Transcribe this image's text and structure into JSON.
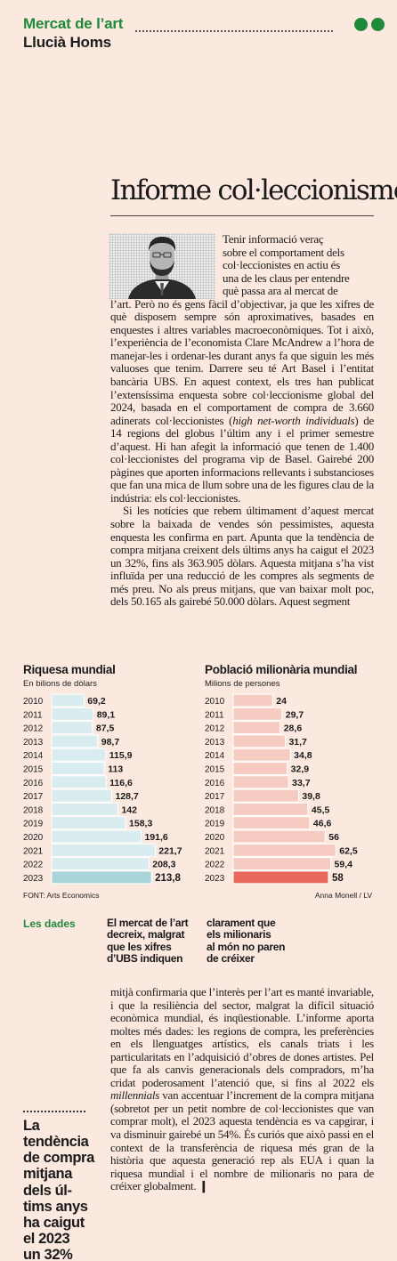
{
  "header": {
    "section": "Mercat de l’art",
    "author": "Llucià Homs"
  },
  "article": {
    "headline": "Informe col·leccionisme",
    "lead_lines": [
      "Tenir informació veraç",
      "sobre el comportament dels",
      "col·leccionistes en actiu és",
      "una de les claus per entendre",
      "què passa ara al mercat de"
    ],
    "p1_rest_a": "l’art. Però no és gens fàcil d’objectivar, ja que les xifres de què disposem sempre són aproximatives, basades en enquestes i altres variables macroeconòmiques. Tot i això, l’experiència de l’economista Clare McAndrew a l’hora de manejar-les i ordenar-les durant anys fa que siguin les més valuoses que tenim. Darrere seu té Art Basel i l’entitat bancària UBS. En aquest context, els tres han publicat l’extensíssima enquesta sobre col·leccionisme global del 2024, basada en el comportament de compra de 3.660 adinerats col·leccionistes (",
    "p1_italic": "high net-worth individuals",
    "p1_rest_b": ") de 14 regions del globus l’últim any i el primer semestre d’aquest. Hi han afegit la informació que tenen de 1.400 col·leccionistes del programa vip de Basel. Gairebé 200 pàgines que aporten informacions rellevants i substancioses que fan una mica de llum sobre una de les figures clau de la indústria: els col·leccionistes.",
    "p2": "Si les notícies que rebem últimament d’aquest mercat sobre la baixada de vendes són pessimistes, aquesta enquesta les confirma en part. Apunta que la tendència de compra mitjana creixent dels últims anys ha caigut el 2023 un 32%, fins als 363.905 dòlars. Aquesta mitjana s’ha vist influïda per una reducció de les compres als segments de més preu. No als preus mitjans, que van baixar molt poc, dels 50.165 als gairebé 50.000 dòlars. Aquest segment",
    "p3_a": "mitjà confirmaria que l’interès per l’art es manté invariable, i que la resiliència del sector, malgrat la difícil situació econòmica mundial, és inqüestionable. L’informe aporta moltes més dades: les regions de compra, les preferències en els llenguatges artístics, els canals triats i les particularitats en l’adquisició d’obres de dones artistes. Pel que fa als canvis generacionals dels compradors, m’ha cridat poderosament l’atenció que, si fins al 2022 els ",
    "p3_italic": "millennials",
    "p3_b": " van accentuar l’increment de la compra mitjana (sobretot per un petit nombre de col·leccionistes que van comprar molt), el 2023 aquesta tendència es va capgirar, i va disminuir gairebé un 54%. És curiós que això passi en el context de la transferència de riquesa més gran de la història que aquesta generació rep als EUA i quan la riquesa mundial i el nombre de milionaris no para de créixer globalment.",
    "end_mark": "❙"
  },
  "chart_data": [
    {
      "type": "bar",
      "orientation": "horizontal",
      "title": "Riquesa mundial",
      "subtitle": "En bilions de dòlars",
      "categories": [
        "2010",
        "2011",
        "2012",
        "2013",
        "2014",
        "2015",
        "2016",
        "2017",
        "2018",
        "2019",
        "2020",
        "2021",
        "2022",
        "2023"
      ],
      "values": [
        69.2,
        89.1,
        87.5,
        98.7,
        115.9,
        113,
        116.6,
        128.7,
        142,
        158.3,
        191.6,
        221.7,
        208.3,
        213.8
      ],
      "labels": [
        "69,2",
        "89,1",
        "87,5",
        "98,7",
        "115,9",
        "113",
        "116,6",
        "128,7",
        "142",
        "158,3",
        "191,6",
        "221,7",
        "208,3",
        "213,8"
      ],
      "xlim": [
        0,
        225
      ],
      "colors": {
        "bar": "#d9ecef",
        "highlight": "#a8d4da",
        "stroke": "#ffffff"
      },
      "highlight_index": 13,
      "source": "FONT: Arts Economics"
    },
    {
      "type": "bar",
      "orientation": "horizontal",
      "title": "Població milionària mundial",
      "subtitle": "Milions de persones",
      "categories": [
        "2010",
        "2011",
        "2012",
        "2013",
        "2014",
        "2015",
        "2016",
        "2017",
        "2018",
        "2019",
        "2020",
        "2021",
        "2022",
        "2023"
      ],
      "values": [
        24,
        29.7,
        28.6,
        31.7,
        34.8,
        32.9,
        33.7,
        39.8,
        45.5,
        46.6,
        56,
        62.5,
        59.4,
        58
      ],
      "labels": [
        "24",
        "29,7",
        "28,6",
        "31,7",
        "34,8",
        "32,9",
        "33,7",
        "39,8",
        "45,5",
        "46,6",
        "56",
        "62,5",
        "59,4",
        "58"
      ],
      "xlim": [
        0,
        64
      ],
      "colors": {
        "bar": "#f5cbc2",
        "highlight": "#e8695c",
        "stroke": "#ffffff"
      },
      "highlight_index": 13,
      "credit": "Anna Monell / LV"
    }
  ],
  "les_dades": {
    "label": "Les dades",
    "col1": [
      "El mercat de l’art",
      "decreix, malgrat",
      "que les xifres",
      "d’UBS indiquen"
    ],
    "col2": [
      "clarament que",
      "els milionaris",
      "al món no paren",
      "de créixer"
    ]
  },
  "pull_quote": {
    "lines": [
      "La",
      "tendència",
      "de compra",
      "mitjana",
      "dels úl-",
      "tims anys",
      "ha caigut",
      "el 2023",
      "un 32%"
    ]
  }
}
